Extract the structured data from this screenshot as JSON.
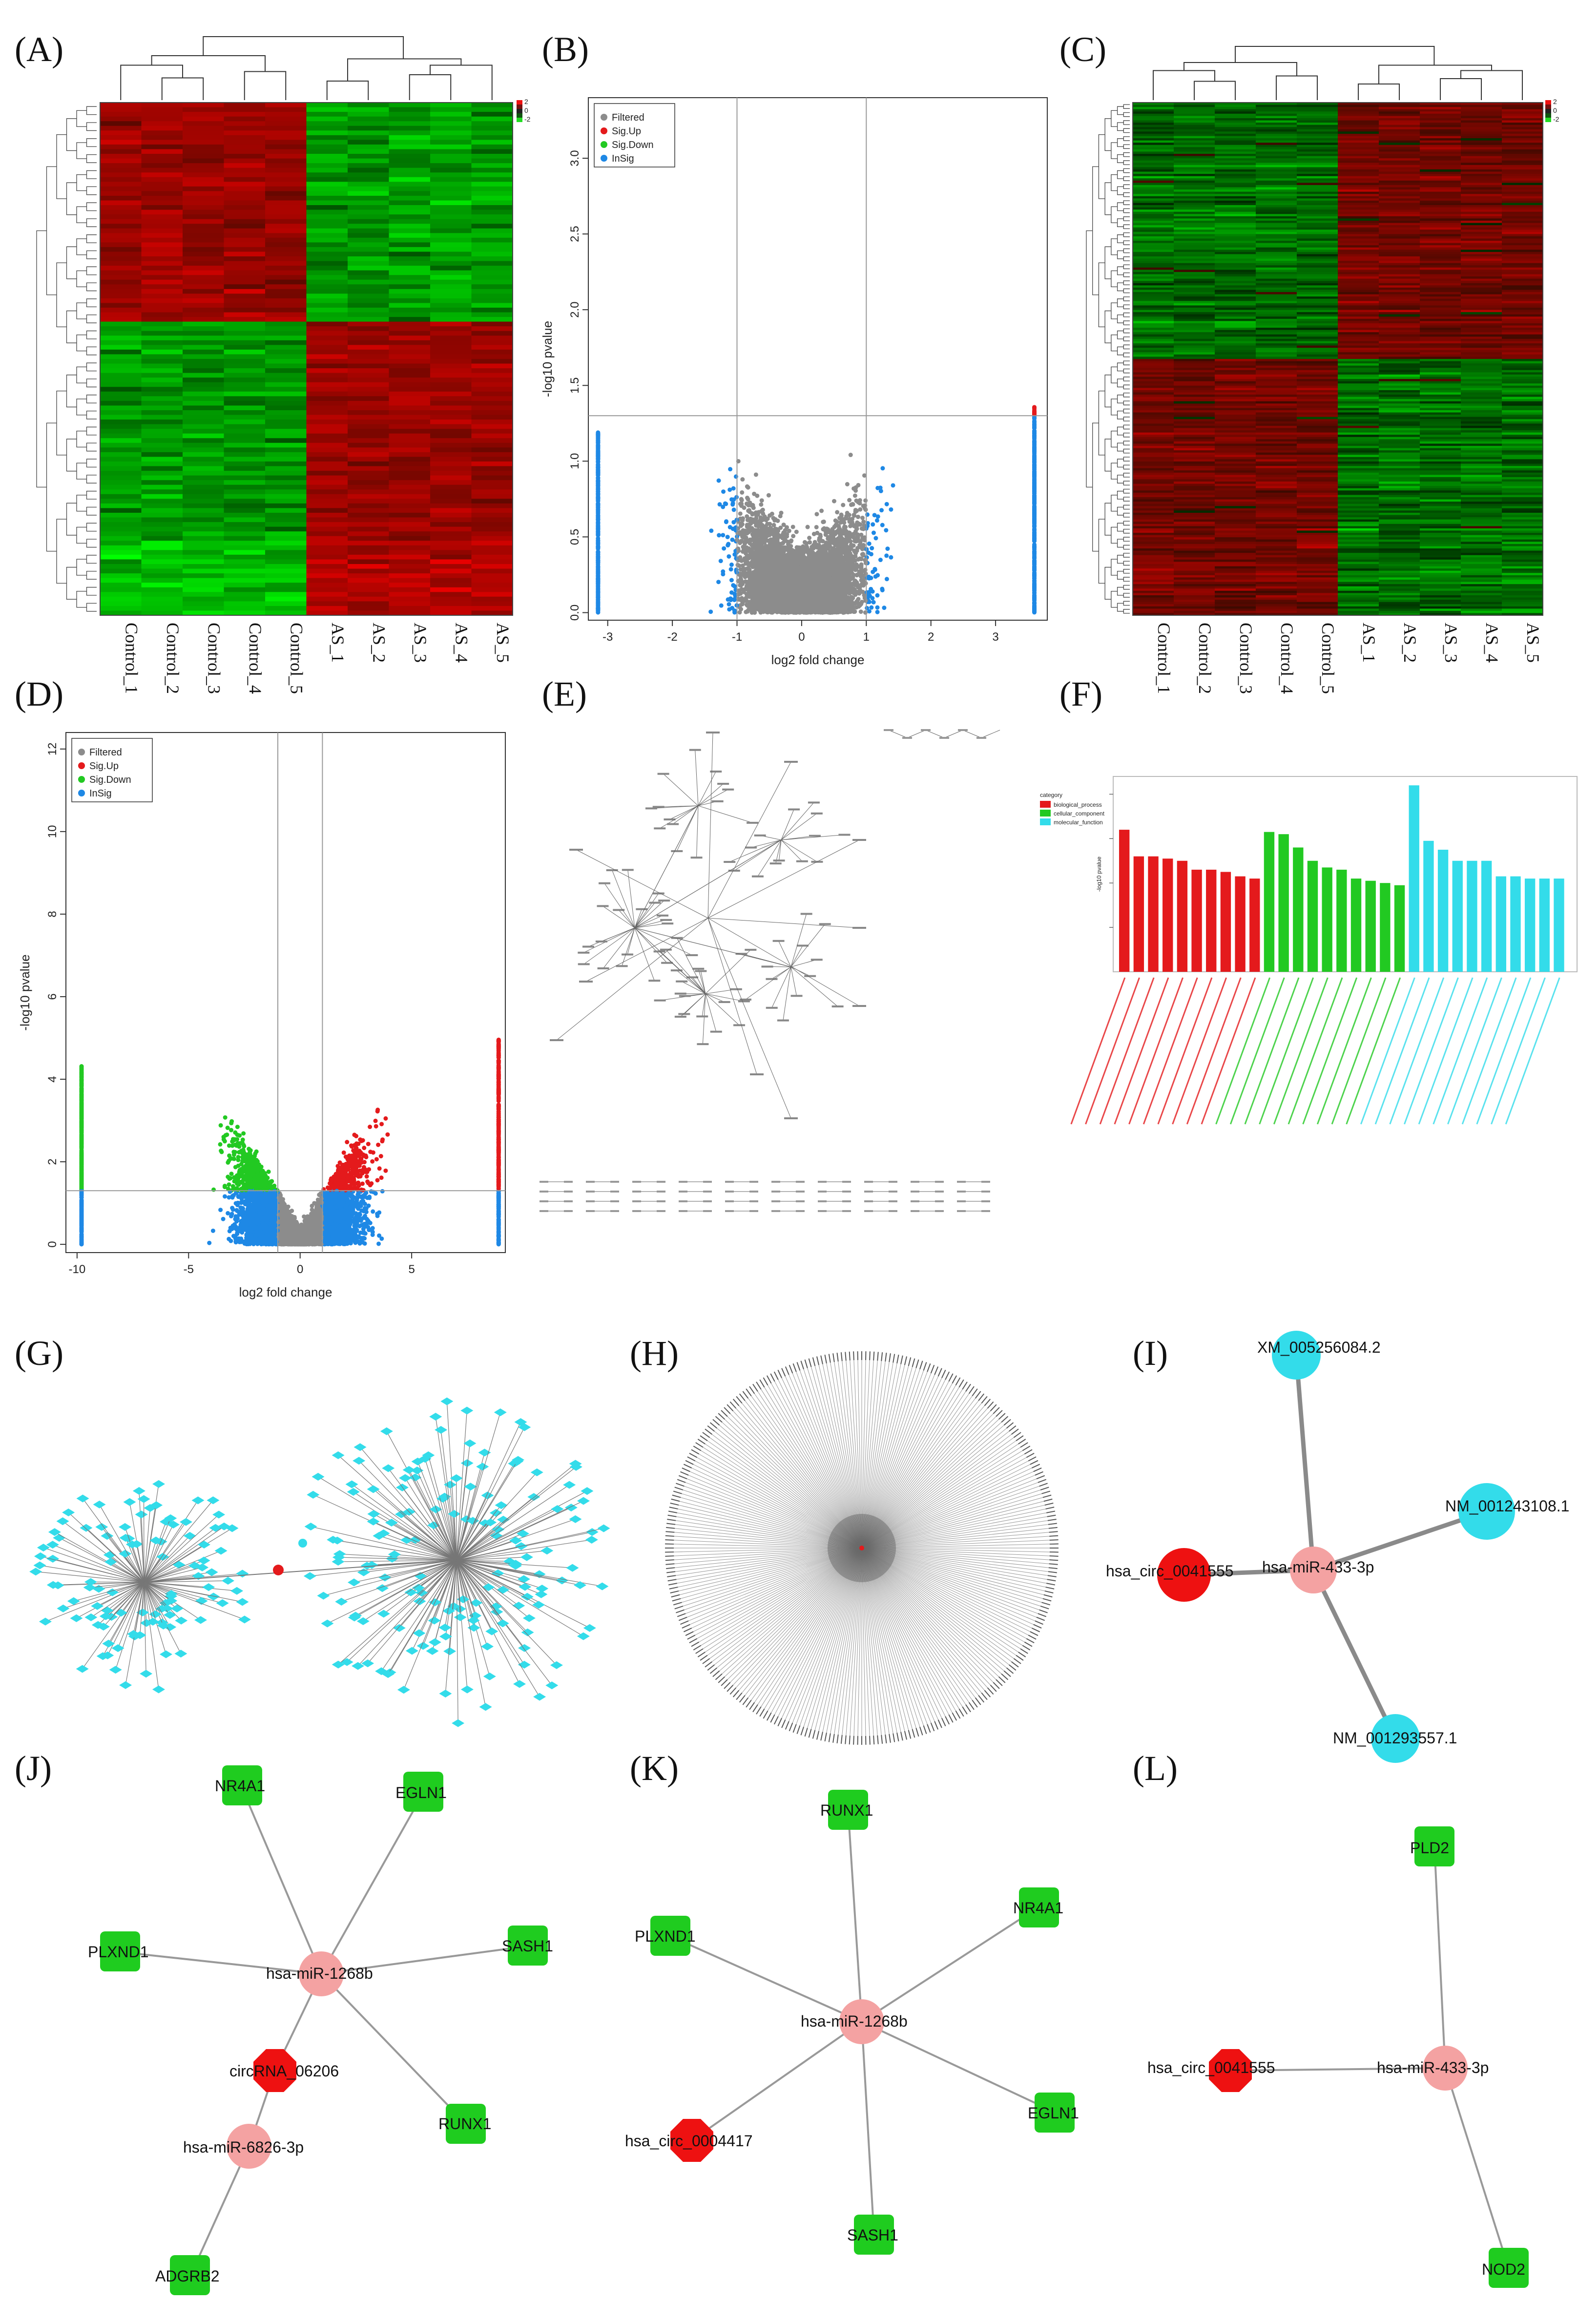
{
  "panels": {
    "A": "(A)",
    "B": "(B)",
    "C": "(C)",
    "D": "(D)",
    "E": "(E)",
    "F": "(F)",
    "G": "(G)",
    "H": "(H)",
    "I": "(I)",
    "J": "(J)",
    "K": "(K)",
    "L": "(L)"
  },
  "colors": {
    "red": "#e41a1c",
    "green": "#22c922",
    "blue": "#1e88e5",
    "grey": "#8c8c8c",
    "cyan": "#33dcea",
    "pink": "#f4a2a2",
    "node_green": "#1fcc1f",
    "node_red": "#ee1111"
  },
  "heatmap_samples": [
    "Control_1",
    "Control_2",
    "Control_3",
    "Control_4",
    "Control_5",
    "AS_1",
    "AS_2",
    "AS_3",
    "AS_4",
    "AS_5"
  ],
  "heatmap_scale": [
    "2",
    "0",
    "-2"
  ],
  "chart_data": [
    {
      "id": "B",
      "type": "scatter",
      "xlabel": "log2 fold change",
      "ylabel": "-log10 pvalue",
      "xlim": [
        -3.3,
        3.8
      ],
      "ylim": [
        -0.05,
        3.4
      ],
      "xticks": [
        "-3",
        "-2",
        "-1",
        "0",
        "1",
        "2",
        "3"
      ],
      "yticks": [
        "0.0",
        "0.5",
        "1.0",
        "1.5",
        "2.0",
        "2.5",
        "3.0"
      ],
      "xtick_values": [
        -3,
        -2,
        -1,
        0,
        1,
        2,
        3
      ],
      "ytick_values": [
        0,
        0.5,
        1,
        1.5,
        2,
        2.5,
        3
      ],
      "vlines": [
        -1,
        1
      ],
      "hline": 1.3,
      "legend": [
        "Filtered",
        "Sig.Up",
        "Sig.Down",
        "InSig"
      ],
      "legend_position": "top-left"
    },
    {
      "id": "D",
      "type": "scatter",
      "xlabel": "log2 fold change",
      "ylabel": "-log10 pvalue",
      "xlim": [
        -10.5,
        9.2
      ],
      "ylim": [
        -0.2,
        12.4
      ],
      "xticks": [
        "-10",
        "-5",
        "0",
        "5"
      ],
      "yticks": [
        "0",
        "2",
        "4",
        "6",
        "8",
        "10",
        "12"
      ],
      "xtick_values": [
        -10,
        -5,
        0,
        5
      ],
      "ytick_values": [
        0,
        2,
        4,
        6,
        8,
        10,
        12
      ],
      "vlines": [
        -1,
        1
      ],
      "hline": 1.3,
      "legend": [
        "Filtered",
        "Sig.Up",
        "Sig.Down",
        "InSig"
      ],
      "legend_position": "top-left"
    },
    {
      "id": "F",
      "type": "bar",
      "ylabel": "-log10 pvalue",
      "legend_title": "category",
      "legend": [
        "biological_process",
        "cellular_component",
        "molecular_function"
      ],
      "legend_position": "top-left",
      "series": [
        {
          "name": "biological_process",
          "values": [
            3.2,
            2.6,
            2.6,
            2.55,
            2.5,
            2.3,
            2.3,
            2.25,
            2.15,
            2.1
          ]
        },
        {
          "name": "cellular_component",
          "values": [
            3.15,
            3.1,
            2.8,
            2.5,
            2.35,
            2.3,
            2.1,
            2.05,
            2.0,
            1.95
          ]
        },
        {
          "name": "molecular_function",
          "values": [
            4.2,
            2.95,
            2.75,
            2.5,
            2.5,
            2.5,
            2.15,
            2.15,
            2.1,
            2.1,
            2.1
          ]
        }
      ]
    }
  ],
  "network_I": {
    "hub": "hsa-miR-433-3p",
    "circ": "hsa_circ_0041555",
    "targets": [
      "XM_005256084.2",
      "NM_001243108.1",
      "NM_001293557.1"
    ]
  },
  "network_J": {
    "hub1": "hsa-miR-1268b",
    "hub2": "hsa-miR-6826-3p",
    "circ": "circRNA_06206",
    "genes": [
      "NR4A1",
      "EGLN1",
      "PLXND1",
      "SASH1",
      "RUNX1",
      "ADGRB2"
    ]
  },
  "network_K": {
    "hub": "hsa-miR-1268b",
    "circ": "hsa_circ_0004417",
    "genes": [
      "RUNX1",
      "NR4A1",
      "PLXND1",
      "EGLN1",
      "SASH1"
    ]
  },
  "network_L": {
    "hub": "hsa-miR-433-3p",
    "circ": "hsa_circ_0041555",
    "genes": [
      "PLD2",
      "NOD2"
    ]
  }
}
